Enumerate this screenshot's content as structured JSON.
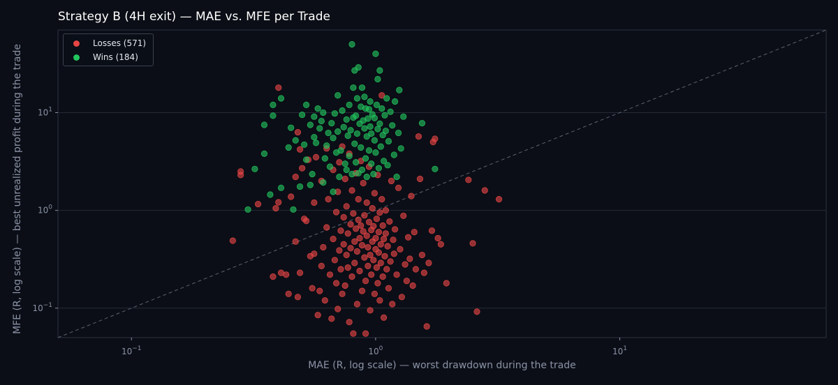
{
  "chart_data": {
    "type": "scatter",
    "title": "Strategy B (4H exit) — MAE vs. MFE per Trade",
    "xlabel": "MAE (R, log scale) — worst drawdown during the trade",
    "ylabel": "MFE (R, log scale) — best unrealized profit during the trade",
    "x_scale": "log",
    "y_scale": "log",
    "xlim": [
      0.05,
      70
    ],
    "ylim": [
      0.05,
      70
    ],
    "x_ticks": [
      {
        "value": 0.1,
        "base": "10",
        "exp": "−1"
      },
      {
        "value": 1,
        "base": "10",
        "exp": "0"
      },
      {
        "value": 10,
        "base": "10",
        "exp": "1"
      }
    ],
    "y_ticks": [
      {
        "value": 0.1,
        "base": "10",
        "exp": "−1"
      },
      {
        "value": 1,
        "base": "10",
        "exp": "0"
      },
      {
        "value": 10,
        "base": "10",
        "exp": "1"
      }
    ],
    "grid": true,
    "reference_line": "y = x (dashed diagonal)",
    "legend_position": "top-left",
    "colors": {
      "losses": "#e84545",
      "wins": "#22c55e",
      "background": "#0b0e16",
      "grid": "#262b36",
      "diagonal": "#5c6372"
    },
    "series": [
      {
        "name": "Losses (571)",
        "color": "#e84545",
        "points": [
          [
            0.26,
            0.49
          ],
          [
            0.28,
            2.3
          ],
          [
            0.28,
            2.5
          ],
          [
            0.33,
            1.16
          ],
          [
            0.38,
            0.21
          ],
          [
            0.39,
            1.05
          ],
          [
            0.4,
            18
          ],
          [
            0.4,
            1.21
          ],
          [
            0.41,
            0.23
          ],
          [
            0.43,
            0.22
          ],
          [
            0.44,
            0.14
          ],
          [
            0.45,
            1.38
          ],
          [
            0.47,
            0.48
          ],
          [
            0.47,
            2.2
          ],
          [
            0.48,
            6.3
          ],
          [
            0.48,
            0.13
          ],
          [
            0.49,
            4.2
          ],
          [
            0.49,
            0.23
          ],
          [
            0.5,
            2.7
          ],
          [
            0.51,
            0.82
          ],
          [
            0.52,
            0.78
          ],
          [
            0.53,
            3.3
          ],
          [
            0.54,
            0.34
          ],
          [
            0.55,
            0.16
          ],
          [
            0.56,
            0.36
          ],
          [
            0.56,
            1.2
          ],
          [
            0.57,
            3.5
          ],
          [
            0.58,
            0.085
          ],
          [
            0.59,
            0.15
          ],
          [
            0.6,
            0.27
          ],
          [
            0.6,
            2.0
          ],
          [
            0.61,
            0.42
          ],
          [
            0.62,
            0.12
          ],
          [
            0.63,
            0.67
          ],
          [
            0.63,
            4.3
          ],
          [
            0.64,
            1.3
          ],
          [
            0.65,
            0.22
          ],
          [
            0.66,
            0.078
          ],
          [
            0.67,
            0.51
          ],
          [
            0.67,
            2.6
          ],
          [
            0.68,
            0.31
          ],
          [
            0.69,
            0.18
          ],
          [
            0.69,
            0.96
          ],
          [
            0.7,
            1.55
          ],
          [
            0.7,
            0.098
          ],
          [
            0.71,
            0.39
          ],
          [
            0.71,
            3.1
          ],
          [
            0.72,
            0.62
          ],
          [
            0.72,
            0.25
          ],
          [
            0.73,
            0.14
          ],
          [
            0.73,
            4.5
          ],
          [
            0.74,
            0.85
          ],
          [
            0.74,
            0.45
          ],
          [
            0.75,
            0.17
          ],
          [
            0.75,
            2.1
          ],
          [
            0.76,
            0.35
          ],
          [
            0.76,
            1.1
          ],
          [
            0.77,
            0.58
          ],
          [
            0.77,
            0.26
          ],
          [
            0.78,
            0.072
          ],
          [
            0.78,
            3.8
          ],
          [
            0.79,
            0.72
          ],
          [
            0.79,
            0.41
          ],
          [
            0.8,
            0.21
          ],
          [
            0.8,
            1.6
          ],
          [
            0.81,
            0.055
          ],
          [
            0.81,
            0.93
          ],
          [
            0.82,
            0.48
          ],
          [
            0.82,
            0.29
          ],
          [
            0.83,
            2.4
          ],
          [
            0.83,
            0.65
          ],
          [
            0.84,
            0.11
          ],
          [
            0.84,
            0.38
          ],
          [
            0.85,
            0.8
          ],
          [
            0.85,
            1.3
          ],
          [
            0.86,
            0.24
          ],
          [
            0.86,
            0.52
          ],
          [
            0.87,
            3.2
          ],
          [
            0.87,
            0.7
          ],
          [
            0.88,
            0.15
          ],
          [
            0.88,
            0.44
          ],
          [
            0.89,
            1.9
          ],
          [
            0.89,
            0.61
          ],
          [
            0.9,
            0.33
          ],
          [
            0.9,
            0.89
          ],
          [
            0.91,
            0.19
          ],
          [
            0.91,
            0.055
          ],
          [
            0.92,
            0.55
          ],
          [
            0.92,
            1.2
          ],
          [
            0.93,
            0.42
          ],
          [
            0.93,
            0.27
          ],
          [
            0.94,
            0.76
          ],
          [
            0.94,
            2.8
          ],
          [
            0.95,
            0.35
          ],
          [
            0.95,
            0.095
          ],
          [
            0.96,
            0.63
          ],
          [
            0.96,
            0.22
          ],
          [
            0.97,
            1.05
          ],
          [
            0.97,
            0.48
          ],
          [
            0.98,
            0.31
          ],
          [
            0.98,
            0.69
          ],
          [
            0.99,
            0.14
          ],
          [
            0.99,
            1.5
          ],
          [
            1.0,
            0.52
          ],
          [
            1.0,
            0.4
          ],
          [
            1.01,
            0.26
          ],
          [
            1.01,
            0.82
          ],
          [
            1.02,
            0.18
          ],
          [
            1.02,
            2.3
          ],
          [
            1.03,
            0.6
          ],
          [
            1.03,
            0.37
          ],
          [
            1.04,
            0.12
          ],
          [
            1.04,
            0.95
          ],
          [
            1.05,
            0.45
          ],
          [
            1.05,
            0.29
          ],
          [
            1.06,
            15
          ],
          [
            1.06,
            1.3
          ],
          [
            1.07,
            0.7
          ],
          [
            1.07,
            0.21
          ],
          [
            1.08,
            0.51
          ],
          [
            1.08,
            0.08
          ],
          [
            1.09,
            0.34
          ],
          [
            1.1,
            1.0
          ],
          [
            1.1,
            0.58
          ],
          [
            1.11,
            0.25
          ],
          [
            1.12,
            0.43
          ],
          [
            1.13,
            0.16
          ],
          [
            1.14,
            0.77
          ],
          [
            1.15,
            0.3
          ],
          [
            1.16,
            2.0
          ],
          [
            1.17,
            0.11
          ],
          [
            1.18,
            0.5
          ],
          [
            1.19,
            0.36
          ],
          [
            1.2,
            0.64
          ],
          [
            1.22,
            0.22
          ],
          [
            1.24,
            1.7
          ],
          [
            1.26,
            0.4
          ],
          [
            1.28,
            0.13
          ],
          [
            1.3,
            0.88
          ],
          [
            1.32,
            0.28
          ],
          [
            1.34,
            0.19
          ],
          [
            1.36,
            0.53
          ],
          [
            1.38,
            0.32
          ],
          [
            1.4,
            1.4
          ],
          [
            1.42,
            0.17
          ],
          [
            1.44,
            0.6
          ],
          [
            1.46,
            0.25
          ],
          [
            1.5,
            5.7
          ],
          [
            1.52,
            2.1
          ],
          [
            1.55,
            0.35
          ],
          [
            1.58,
            0.23
          ],
          [
            1.62,
            0.065
          ],
          [
            1.65,
            0.29
          ],
          [
            1.7,
            0.62
          ],
          [
            1.72,
            5.0
          ],
          [
            1.75,
            5.4
          ],
          [
            1.8,
            0.52
          ],
          [
            1.85,
            0.45
          ],
          [
            1.95,
            0.18
          ],
          [
            2.4,
            2.05
          ],
          [
            2.5,
            0.46
          ],
          [
            2.6,
            0.092
          ],
          [
            2.8,
            1.6
          ],
          [
            3.2,
            1.3
          ]
        ]
      },
      {
        "name": "Wins (184)",
        "color": "#22c55e",
        "points": [
          [
            0.3,
            1.02
          ],
          [
            0.32,
            2.65
          ],
          [
            0.35,
            3.8
          ],
          [
            0.35,
            7.5
          ],
          [
            0.37,
            1.45
          ],
          [
            0.38,
            12
          ],
          [
            0.38,
            9.3
          ],
          [
            0.41,
            1.7
          ],
          [
            0.41,
            14
          ],
          [
            0.44,
            4.4
          ],
          [
            0.45,
            7
          ],
          [
            0.46,
            1.02
          ],
          [
            0.47,
            5.2
          ],
          [
            0.49,
            1.75
          ],
          [
            0.5,
            9.5
          ],
          [
            0.51,
            4.7
          ],
          [
            0.52,
            3.3
          ],
          [
            0.52,
            12
          ],
          [
            0.54,
            7.5
          ],
          [
            0.54,
            1.82
          ],
          [
            0.55,
            2.35
          ],
          [
            0.56,
            9.1
          ],
          [
            0.56,
            5.6
          ],
          [
            0.57,
            4.9
          ],
          [
            0.58,
            11
          ],
          [
            0.59,
            6.9
          ],
          [
            0.6,
            8.2
          ],
          [
            0.61,
            1.93
          ],
          [
            0.61,
            10
          ],
          [
            0.62,
            3.4
          ],
          [
            0.63,
            4.6
          ],
          [
            0.64,
            6.2
          ],
          [
            0.65,
            2.8
          ],
          [
            0.66,
            7.8
          ],
          [
            0.67,
            5.5
          ],
          [
            0.67,
            1.55
          ],
          [
            0.68,
            9.8
          ],
          [
            0.69,
            3.9
          ],
          [
            0.7,
            6.4
          ],
          [
            0.7,
            15
          ],
          [
            0.71,
            2.2
          ],
          [
            0.72,
            4.1
          ],
          [
            0.73,
            10.5
          ],
          [
            0.74,
            7.1
          ],
          [
            0.75,
            3.0
          ],
          [
            0.76,
            8.5
          ],
          [
            0.76,
            2.6
          ],
          [
            0.77,
            5.8
          ],
          [
            0.78,
            12
          ],
          [
            0.78,
            3.6
          ],
          [
            0.79,
            6.6
          ],
          [
            0.8,
            50
          ],
          [
            0.8,
            2.35
          ],
          [
            0.81,
            8.9
          ],
          [
            0.81,
            18
          ],
          [
            0.82,
            4.8
          ],
          [
            0.82,
            27
          ],
          [
            0.83,
            9.3
          ],
          [
            0.83,
            3.1
          ],
          [
            0.84,
            14
          ],
          [
            0.84,
            6.1
          ],
          [
            0.85,
            2.4
          ],
          [
            0.85,
            29
          ],
          [
            0.86,
            7.7
          ],
          [
            0.87,
            11.5
          ],
          [
            0.87,
            4.4
          ],
          [
            0.88,
            18
          ],
          [
            0.88,
            2.6
          ],
          [
            0.89,
            8.3
          ],
          [
            0.9,
            6.9
          ],
          [
            0.9,
            14.5
          ],
          [
            0.91,
            3.4
          ],
          [
            0.91,
            11
          ],
          [
            0.92,
            5.7
          ],
          [
            0.92,
            2.2
          ],
          [
            0.93,
            8.7
          ],
          [
            0.94,
            10.8
          ],
          [
            0.94,
            4.1
          ],
          [
            0.95,
            7.2
          ],
          [
            0.95,
            13
          ],
          [
            0.96,
            3.0
          ],
          [
            0.96,
            6.1
          ],
          [
            0.97,
            9.6
          ],
          [
            0.98,
            2.35
          ],
          [
            0.99,
            5.2
          ],
          [
            0.99,
            8.8
          ],
          [
            1.0,
            40
          ],
          [
            1.0,
            3.9
          ],
          [
            1.01,
            12
          ],
          [
            1.02,
            6.8
          ],
          [
            1.02,
            22
          ],
          [
            1.03,
            2.7
          ],
          [
            1.04,
            27
          ],
          [
            1.04,
            7.7
          ],
          [
            1.05,
            4.5
          ],
          [
            1.06,
            11
          ],
          [
            1.07,
            5.9
          ],
          [
            1.08,
            3.2
          ],
          [
            1.09,
            9.4
          ],
          [
            1.1,
            6.5
          ],
          [
            1.11,
            14
          ],
          [
            1.12,
            2.9
          ],
          [
            1.13,
            5.1
          ],
          [
            1.15,
            10.2
          ],
          [
            1.17,
            7.4
          ],
          [
            1.19,
            3.7
          ],
          [
            1.2,
            13
          ],
          [
            1.22,
            2.2
          ],
          [
            1.24,
            6.2
          ],
          [
            1.25,
            17
          ],
          [
            1.27,
            4.3
          ],
          [
            1.3,
            9.1
          ],
          [
            1.55,
            7.8
          ],
          [
            1.75,
            2.65
          ]
        ]
      }
    ]
  }
}
